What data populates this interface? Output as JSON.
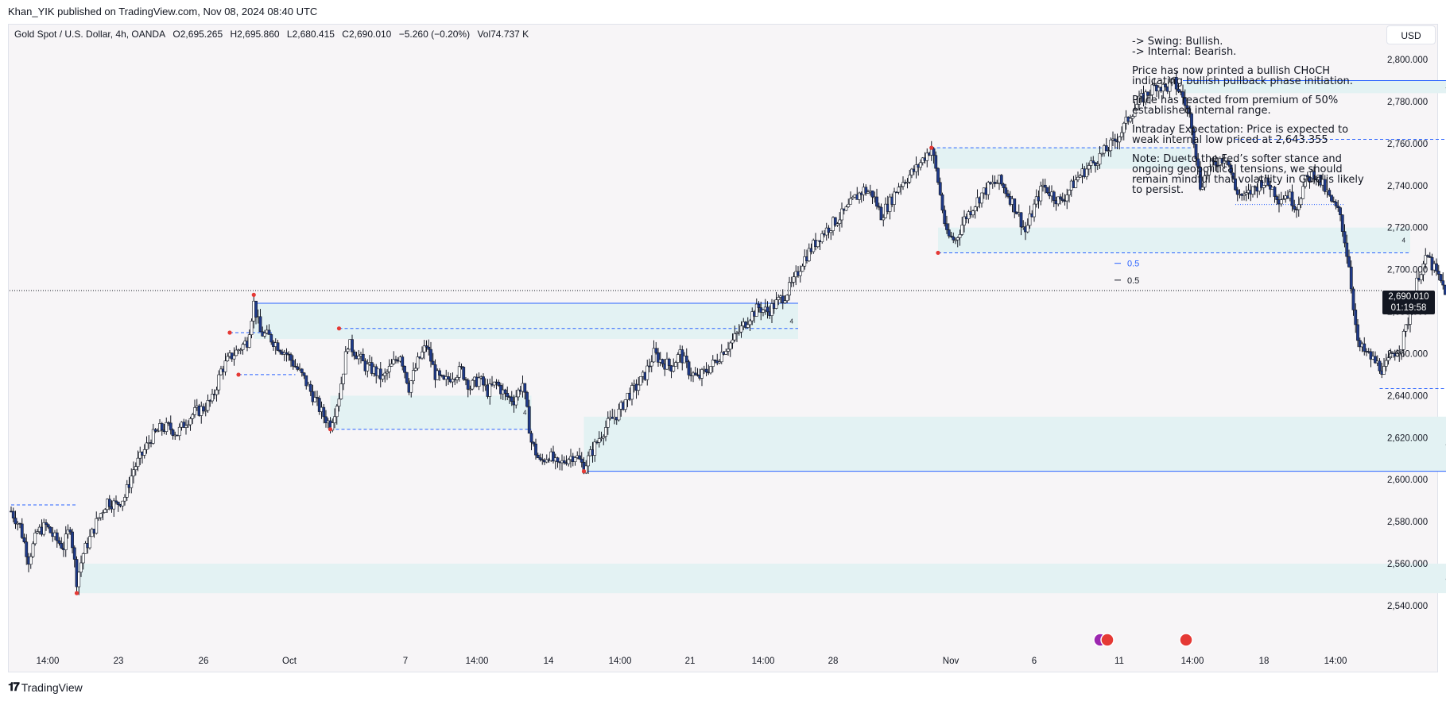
{
  "header": {
    "published_line": "Khan_YIK published on TradingView.com, Nov 08, 2024 08:40 UTC"
  },
  "symbol_info": {
    "name": "Gold Spot / U.S. Dollar, 4h, OANDA",
    "open": "O2,695.265",
    "high": "H2,695.860",
    "low": "L2,680.415",
    "close": "C2,690.010",
    "change": "−5.260 (−0.20%)",
    "volume": "Vol74.737 K"
  },
  "currency_button": "USD",
  "notes": {
    "swing": "-> Swing:  Bullish.",
    "internal": "-> Internal:  Bearish.",
    "p1": "Price has now printed a bullish CHoCH\nindicating bullish pullback phase initiation.",
    "p2": "Price has reacted from premium of 50%\nestablished internal range.",
    "p3": "Intraday Expectation: Price is expected to\nweak internal low priced at 2,643.355",
    "p4": "Note: Due to the Fed’s softer stance and\nongoing geopolitical tensions, we should\nremain mindful that volatility in Gold is likely\nto persist."
  },
  "price_tag": {
    "price": "2,690.010",
    "countdown": "01:19:58"
  },
  "footer": {
    "logo_text": "TradingView"
  },
  "colors": {
    "bull_candle": "#ffffff",
    "bear_candle": "#1e3a8a",
    "zone_fill": "#e3f2f3",
    "structure_line": "#2962ff",
    "swing_point": "#e53935"
  },
  "chart_data": {
    "type": "candlestick",
    "symbol": "Gold Spot / U.S. Dollar",
    "timeframe": "4h",
    "ylim": [
      2532,
      2808
    ],
    "y_ticks": [
      2540,
      2560,
      2580,
      2600,
      2620,
      2640,
      2660,
      2680,
      2700,
      2720,
      2740,
      2760,
      2780,
      2800
    ],
    "y_tick_labels": [
      "2,540.000",
      "2,560.000",
      "2,580.000",
      "2,600.000",
      "2,620.000",
      "2,640.000",
      "2,660.000",
      "2,680.000",
      "2,700.000",
      "2,720.000",
      "2,740.000",
      "2,760.000",
      "2,780.000",
      "2,800.000"
    ],
    "x_tick_labels": [
      "14:00",
      "23",
      "26",
      "Oct",
      "7",
      "14:00",
      "14",
      "14:00",
      "21",
      "14:00",
      "28",
      "Nov",
      "6",
      "11",
      "14:00",
      "18",
      "14:00"
    ],
    "last_price": 2690.01,
    "fib_labels": [
      {
        "label": "0.5",
        "price": 2703
      },
      {
        "label": "0.5",
        "price": 2695
      }
    ],
    "close_path": [
      [
        0,
        2585
      ],
      [
        4,
        2578
      ],
      [
        8,
        2562
      ],
      [
        12,
        2575
      ],
      [
        16,
        2578
      ],
      [
        20,
        2572
      ],
      [
        24,
        2568
      ],
      [
        27,
        2578
      ],
      [
        30,
        2552
      ],
      [
        33,
        2565
      ],
      [
        36,
        2572
      ],
      [
        40,
        2582
      ],
      [
        44,
        2590
      ],
      [
        48,
        2588
      ],
      [
        52,
        2592
      ],
      [
        56,
        2605
      ],
      [
        60,
        2612
      ],
      [
        64,
        2620
      ],
      [
        68,
        2624
      ],
      [
        72,
        2625
      ],
      [
        76,
        2622
      ],
      [
        80,
        2628
      ],
      [
        84,
        2632
      ],
      [
        88,
        2634
      ],
      [
        92,
        2638
      ],
      [
        96,
        2652
      ],
      [
        100,
        2658
      ],
      [
        104,
        2662
      ],
      [
        108,
        2666
      ],
      [
        111,
        2684
      ],
      [
        114,
        2670
      ],
      [
        118,
        2668
      ],
      [
        122,
        2664
      ],
      [
        126,
        2660
      ],
      [
        130,
        2654
      ],
      [
        134,
        2648
      ],
      [
        138,
        2640
      ],
      [
        142,
        2632
      ],
      [
        146,
        2626
      ],
      [
        150,
        2640
      ],
      [
        154,
        2665
      ],
      [
        158,
        2660
      ],
      [
        162,
        2654
      ],
      [
        166,
        2652
      ],
      [
        170,
        2648
      ],
      [
        174,
        2654
      ],
      [
        178,
        2660
      ],
      [
        182,
        2644
      ],
      [
        186,
        2656
      ],
      [
        190,
        2664
      ],
      [
        194,
        2650
      ],
      [
        198,
        2646
      ],
      [
        202,
        2650
      ],
      [
        206,
        2652
      ],
      [
        210,
        2644
      ],
      [
        214,
        2648
      ],
      [
        218,
        2642
      ],
      [
        222,
        2646
      ],
      [
        226,
        2640
      ],
      [
        230,
        2638
      ],
      [
        234,
        2646
      ],
      [
        238,
        2618
      ],
      [
        242,
        2608
      ],
      [
        246,
        2612
      ],
      [
        250,
        2606
      ],
      [
        254,
        2610
      ],
      [
        258,
        2612
      ],
      [
        262,
        2606
      ],
      [
        266,
        2614
      ],
      [
        270,
        2622
      ],
      [
        274,
        2628
      ],
      [
        278,
        2632
      ],
      [
        282,
        2640
      ],
      [
        286,
        2644
      ],
      [
        290,
        2650
      ],
      [
        294,
        2660
      ],
      [
        298,
        2656
      ],
      [
        302,
        2654
      ],
      [
        306,
        2660
      ],
      [
        310,
        2652
      ],
      [
        314,
        2648
      ],
      [
        318,
        2652
      ],
      [
        322,
        2656
      ],
      [
        326,
        2662
      ],
      [
        330,
        2666
      ],
      [
        334,
        2672
      ],
      [
        338,
        2678
      ],
      [
        342,
        2682
      ],
      [
        346,
        2680
      ],
      [
        350,
        2684
      ],
      [
        354,
        2688
      ],
      [
        358,
        2694
      ],
      [
        362,
        2704
      ],
      [
        366,
        2710
      ],
      [
        370,
        2716
      ],
      [
        374,
        2720
      ],
      [
        378,
        2724
      ],
      [
        382,
        2728
      ],
      [
        386,
        2734
      ],
      [
        390,
        2738
      ],
      [
        394,
        2736
      ],
      [
        398,
        2726
      ],
      [
        402,
        2732
      ],
      [
        406,
        2740
      ],
      [
        410,
        2744
      ],
      [
        414,
        2748
      ],
      [
        418,
        2754
      ],
      [
        421,
        2758
      ],
      [
        424,
        2742
      ],
      [
        428,
        2716
      ],
      [
        432,
        2714
      ],
      [
        436,
        2724
      ],
      [
        440,
        2730
      ],
      [
        444,
        2736
      ],
      [
        448,
        2740
      ],
      [
        452,
        2742
      ],
      [
        456,
        2736
      ],
      [
        460,
        2728
      ],
      [
        464,
        2718
      ],
      [
        468,
        2730
      ],
      [
        472,
        2740
      ],
      [
        476,
        2736
      ],
      [
        480,
        2732
      ],
      [
        484,
        2738
      ],
      [
        488,
        2744
      ],
      [
        492,
        2748
      ],
      [
        496,
        2752
      ],
      [
        500,
        2756
      ],
      [
        504,
        2760
      ],
      [
        508,
        2766
      ],
      [
        512,
        2774
      ],
      [
        516,
        2780
      ],
      [
        520,
        2784
      ],
      [
        524,
        2788
      ],
      [
        528,
        2786
      ],
      [
        532,
        2789
      ],
      [
        536,
        2782
      ],
      [
        540,
        2770
      ],
      [
        544,
        2740
      ],
      [
        548,
        2748
      ],
      [
        552,
        2752
      ],
      [
        556,
        2754
      ],
      [
        560,
        2738
      ],
      [
        564,
        2734
      ],
      [
        568,
        2738
      ],
      [
        572,
        2742
      ],
      [
        576,
        2740
      ],
      [
        580,
        2734
      ],
      [
        584,
        2736
      ],
      [
        588,
        2730
      ],
      [
        592,
        2742
      ],
      [
        596,
        2746
      ],
      [
        600,
        2740
      ],
      [
        604,
        2732
      ],
      [
        608,
        2726
      ],
      [
        612,
        2702
      ],
      [
        616,
        2664
      ],
      [
        620,
        2660
      ],
      [
        624,
        2656
      ],
      [
        628,
        2652
      ],
      [
        632,
        2660
      ],
      [
        636,
        2664
      ],
      [
        640,
        2680
      ],
      [
        644,
        2698
      ],
      [
        648,
        2706
      ],
      [
        652,
        2698
      ],
      [
        656,
        2690
      ]
    ],
    "swing_points": [
      {
        "bar": 30,
        "price": 2546
      },
      {
        "bar": 100,
        "price": 2670
      },
      {
        "bar": 104,
        "price": 2650
      },
      {
        "bar": 111,
        "price": 2688
      },
      {
        "bar": 146,
        "price": 2624
      },
      {
        "bar": 150,
        "price": 2672
      },
      {
        "bar": 262,
        "price": 2604
      },
      {
        "bar": 421,
        "price": 2758
      },
      {
        "bar": 424,
        "price": 2708
      }
    ],
    "zones": [
      {
        "bar_from": 30,
        "bar_to": 660,
        "low": 2546,
        "high": 2560,
        "label": "4"
      },
      {
        "bar_from": 262,
        "bar_to": 660,
        "low": 2604,
        "high": 2630,
        "label": "4"
      },
      {
        "bar_from": 111,
        "bar_to": 360,
        "low": 2667,
        "high": 2684,
        "label": "4"
      },
      {
        "bar_from": 421,
        "bar_to": 540,
        "low": 2748,
        "high": 2758,
        "label": "4"
      },
      {
        "bar_from": 424,
        "bar_to": 640,
        "low": 2708,
        "high": 2720,
        "label": "4"
      },
      {
        "bar_from": 536,
        "bar_to": 660,
        "low": 2784,
        "high": 2790,
        "label": "4"
      },
      {
        "bar_from": 146,
        "bar_to": 238,
        "low": 2624,
        "high": 2640,
        "label": "4"
      }
    ],
    "structure_lines": [
      {
        "bar_from": 111,
        "bar_to": 360,
        "price": 2684,
        "style": "solid"
      },
      {
        "bar_from": 262,
        "bar_to": 685,
        "price": 2604,
        "style": "solid"
      },
      {
        "bar_from": 536,
        "bar_to": 685,
        "price": 2790,
        "style": "solid"
      },
      {
        "bar_from": 0,
        "bar_to": 30,
        "price": 2588,
        "style": "dashed"
      },
      {
        "bar_from": 100,
        "bar_to": 120,
        "price": 2670,
        "style": "dashed"
      },
      {
        "bar_from": 104,
        "bar_to": 130,
        "price": 2650,
        "style": "dashed"
      },
      {
        "bar_from": 150,
        "bar_to": 360,
        "price": 2672,
        "style": "dashed"
      },
      {
        "bar_from": 146,
        "bar_to": 238,
        "price": 2624,
        "style": "dashed"
      },
      {
        "bar_from": 421,
        "bar_to": 540,
        "price": 2758,
        "style": "dashed"
      },
      {
        "bar_from": 424,
        "bar_to": 640,
        "price": 2708,
        "style": "dashed"
      },
      {
        "bar_from": 560,
        "bar_to": 685,
        "price": 2762,
        "style": "dashed"
      },
      {
        "bar_from": 626,
        "bar_to": 685,
        "price": 2643.355,
        "style": "dashed"
      },
      {
        "bar_from": 560,
        "bar_to": 610,
        "price": 2731,
        "style": "dotted"
      }
    ]
  }
}
